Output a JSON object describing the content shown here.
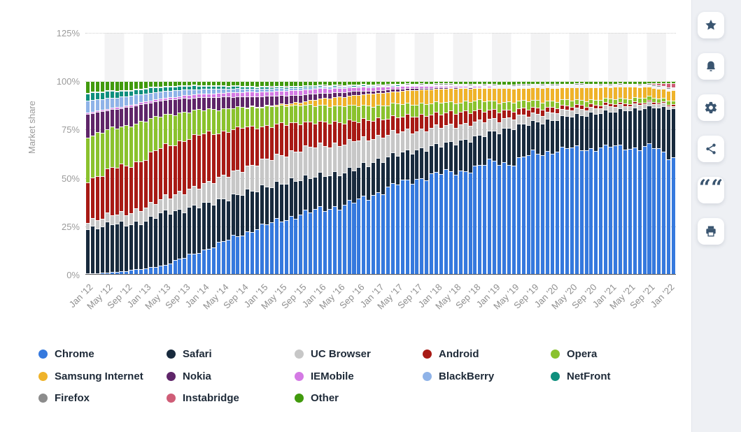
{
  "chart_data": {
    "type": "bar",
    "stacked": true,
    "title": "",
    "xlabel": "",
    "ylabel": "Market share",
    "ylim": [
      0,
      125
    ],
    "y_tick_values": [
      0,
      25,
      50,
      75,
      100,
      125
    ],
    "y_tick_labels": [
      "0%",
      "25%",
      "50%",
      "75%",
      "100%",
      "125%"
    ],
    "x_tick_labels": [
      "Jan '12",
      "May '12",
      "Sep '12",
      "Jan '13",
      "May '13",
      "Sep '13",
      "Jan '14",
      "May '14",
      "Sep '14",
      "Jan '15",
      "May '15",
      "Sep '15",
      "Jan '16",
      "May '16",
      "Sep '16",
      "Jan '17",
      "May '17",
      "Sep '17",
      "Jan '18",
      "May '18",
      "Sep '18",
      "Jan '19",
      "May '19",
      "Sep '19",
      "Jan '20",
      "May '20",
      "Sep '20",
      "Jan '21",
      "May '21",
      "Sep '21",
      "Jan '22"
    ],
    "months_per_tick": 4,
    "months_total": 122,
    "legend_position": "bottom",
    "grid": "dotted-horizontal",
    "note": "Monthly stacked bars of mobile browser market share (%); series values given at the 31 labeled 4-month anchor points Jan 2012 - Jan 2022, bars sum to 100%",
    "series": [
      {
        "name": "Chrome",
        "color": "#3579de",
        "values": [
          0.6,
          1.2,
          2.0,
          3.2,
          5.5,
          9.0,
          13.0,
          17.0,
          21.0,
          25.0,
          28.5,
          31.5,
          34.0,
          35.5,
          38.5,
          43.0,
          46.5,
          49.0,
          50.5,
          52.5,
          53.5,
          56.5,
          53.5,
          59.5,
          61.5,
          62.5,
          63.5,
          62.0,
          62.5,
          64.0,
          62.0
        ]
      },
      {
        "name": "Safari",
        "color": "#182a3d",
        "values": [
          23.5,
          25.0,
          24.0,
          25.5,
          27.5,
          25.5,
          23.5,
          22.0,
          21.0,
          20.0,
          19.0,
          18.5,
          18.0,
          17.0,
          17.5,
          16.5,
          15.5,
          14.5,
          14.5,
          15.0,
          15.5,
          14.5,
          17.5,
          15.0,
          15.5,
          16.5,
          17.0,
          17.5,
          18.5,
          19.5,
          25.0
        ]
      },
      {
        "name": "UC Browser",
        "color": "#c7c7c7",
        "values": [
          3.5,
          4.5,
          5.5,
          7.0,
          8.0,
          9.0,
          10.5,
          11.5,
          12.5,
          13.5,
          14.5,
          15.0,
          15.5,
          15.0,
          14.0,
          12.5,
          11.0,
          10.0,
          9.0,
          8.5,
          7.5,
          6.0,
          4.5,
          4.0,
          3.5,
          3.0,
          2.8,
          2.5,
          2.2,
          2.0,
          1.5
        ]
      },
      {
        "name": "Android",
        "color": "#a81a15",
        "values": [
          21.5,
          23.0,
          25.0,
          26.0,
          27.0,
          27.5,
          26.0,
          23.5,
          21.0,
          18.0,
          16.0,
          14.0,
          12.0,
          11.5,
          10.0,
          9.0,
          8.0,
          7.5,
          7.0,
          6.5,
          6.0,
          4.5,
          3.5,
          3.0,
          2.5,
          2.0,
          1.6,
          1.3,
          1.0,
          0.9,
          0.8
        ]
      },
      {
        "name": "Opera",
        "color": "#8ac22d",
        "values": [
          22.0,
          21.0,
          20.5,
          19.5,
          16.5,
          14.5,
          12.5,
          11.5,
          10.5,
          10.0,
          9.5,
          9.0,
          8.8,
          8.5,
          8.0,
          7.0,
          6.5,
          6.0,
          5.5,
          5.2,
          5.0,
          4.5,
          4.0,
          3.8,
          3.2,
          2.8,
          2.5,
          2.3,
          2.2,
          2.1,
          2.0
        ]
      },
      {
        "name": "Samsung Internet",
        "color": "#efb32a",
        "values": [
          0,
          0,
          0,
          0,
          0,
          0,
          0,
          0,
          0,
          0.3,
          0.8,
          1.5,
          3.5,
          4.5,
          5.5,
          6.5,
          6.5,
          7.0,
          7.0,
          6.8,
          6.5,
          6.5,
          6.5,
          6.3,
          6.5,
          6.3,
          6.0,
          6.0,
          5.5,
          5.2,
          5.0
        ]
      },
      {
        "name": "Nokia",
        "color": "#5f2569",
        "values": [
          11.5,
          10.0,
          9.5,
          9.0,
          8.0,
          7.0,
          6.5,
          6.0,
          5.5,
          5.0,
          4.5,
          3.8,
          3.0,
          2.5,
          2.0,
          1.5,
          1.2,
          0.9,
          0.7,
          0.5,
          0.4,
          0.3,
          0.2,
          0.2,
          0.1,
          0.1,
          0.1,
          0.1,
          0.1,
          0.1,
          0.1
        ]
      },
      {
        "name": "IEMobile",
        "color": "#d47ae4",
        "values": [
          0.7,
          0.8,
          0.9,
          1.0,
          1.2,
          1.5,
          1.8,
          2.1,
          2.3,
          2.4,
          2.4,
          2.4,
          2.3,
          2.1,
          1.9,
          1.7,
          1.4,
          1.1,
          0.9,
          0.7,
          0.5,
          0.4,
          0.3,
          0.2,
          0.2,
          0.1,
          0.1,
          0.1,
          0.1,
          0.1,
          0.1
        ]
      },
      {
        "name": "BlackBerry",
        "color": "#8fb3e8",
        "values": [
          6.0,
          5.5,
          4.8,
          4.2,
          3.6,
          3.0,
          2.5,
          2.1,
          1.8,
          1.5,
          1.3,
          1.1,
          0.9,
          0.7,
          0.6,
          0.5,
          0.4,
          0.3,
          0.3,
          0.2,
          0.2,
          0.1,
          0.1,
          0.1,
          0.1,
          0.1,
          0.1,
          0,
          0,
          0,
          0
        ]
      },
      {
        "name": "NetFront",
        "color": "#0e8f7d",
        "values": [
          4.0,
          3.5,
          3.0,
          2.6,
          2.2,
          1.9,
          1.6,
          1.3,
          1.1,
          0.9,
          0.8,
          0.7,
          0.6,
          0.5,
          0.5,
          0.4,
          0.4,
          0.3,
          0.3,
          0.2,
          0.2,
          0.2,
          0.2,
          0.1,
          0.1,
          0.1,
          0.1,
          0.1,
          0.1,
          0.1,
          0.1
        ]
      },
      {
        "name": "Firefox",
        "color": "#8c8c8c",
        "values": [
          0.3,
          0.3,
          0.3,
          0.3,
          0.3,
          0.3,
          0.3,
          0.3,
          0.3,
          0.4,
          0.4,
          0.4,
          0.4,
          0.4,
          0.4,
          0.5,
          0.5,
          0.5,
          0.5,
          0.5,
          0.5,
          0.5,
          0.5,
          0.5,
          0.5,
          0.5,
          0.5,
          0.5,
          0.5,
          0.5,
          0.5
        ]
      },
      {
        "name": "Instabridge",
        "color": "#cf5d77",
        "values": [
          0,
          0,
          0,
          0,
          0,
          0,
          0,
          0,
          0,
          0,
          0,
          0,
          0,
          0,
          0,
          0,
          0,
          0,
          0,
          0,
          0,
          0,
          0,
          0,
          0,
          0,
          0,
          0,
          0,
          0,
          2.0
        ]
      },
      {
        "name": "Other",
        "color": "#419a0d",
        "values": [
          5.5,
          5.0,
          4.5,
          3.5,
          2.5,
          2.2,
          2.0,
          2.2,
          2.3,
          2.5,
          2.5,
          2.3,
          2.0,
          1.8,
          1.7,
          1.5,
          1.3,
          1.2,
          1.1,
          1.2,
          1.3,
          1.5,
          1.5,
          1.3,
          1.3,
          1.2,
          1.2,
          1.3,
          1.2,
          1.2,
          1.0
        ]
      }
    ]
  },
  "sidebar": {
    "background": "#eef0f4",
    "icon_color": "#3a5570",
    "buttons": [
      {
        "name": "favorite-button",
        "icon": "star-icon"
      },
      {
        "name": "notifications-button",
        "icon": "bell-icon"
      },
      {
        "name": "settings-button",
        "icon": "gear-icon"
      },
      {
        "name": "share-button",
        "icon": "share-icon"
      },
      {
        "name": "cite-button",
        "icon": "quote-icon"
      },
      {
        "name": "print-button",
        "icon": "printer-icon"
      }
    ]
  }
}
